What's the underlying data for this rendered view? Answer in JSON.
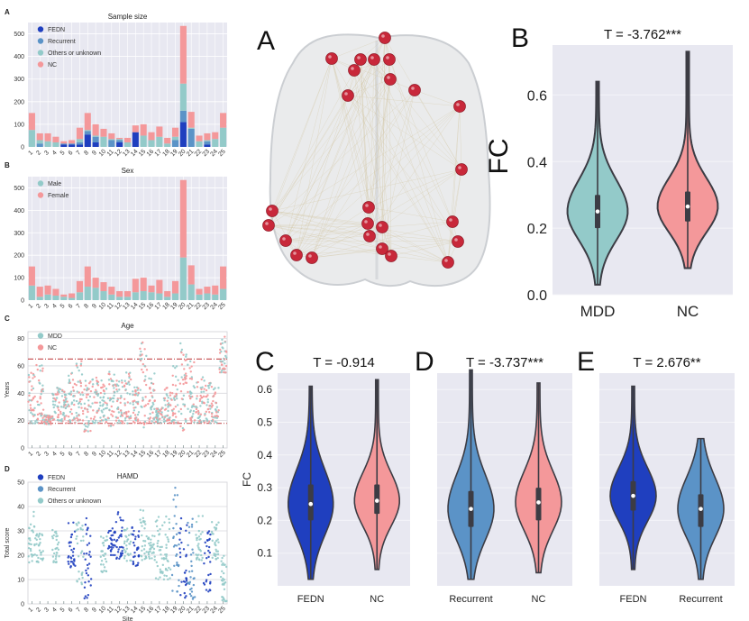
{
  "figure": {
    "left_panels": {
      "A": "A",
      "B": "B",
      "C": "C",
      "D": "D"
    },
    "right_panels": {
      "A": "A",
      "B": "B",
      "C": "C",
      "D": "D",
      "E": "E"
    }
  },
  "colors": {
    "FEDN": "#1f3fbf",
    "Recurrent": "#5b93c7",
    "Others": "#93cac9",
    "NC": "#f4989a",
    "Male": "#93cac9",
    "Female": "#f4989a",
    "plot_bg": "#e8e8f1",
    "node": "#c8283a"
  },
  "chart_data": [
    {
      "id": "sample_size",
      "type": "bar",
      "stacked": true,
      "title": "Sample size",
      "xlabel": "",
      "ylabel": "",
      "ylim": [
        0,
        550
      ],
      "yticks": [
        0,
        100,
        200,
        300,
        400,
        500
      ],
      "categories": [
        "1",
        "2",
        "3",
        "4",
        "5",
        "6",
        "7",
        "8",
        "9",
        "10",
        "11",
        "12",
        "13",
        "14",
        "15",
        "16",
        "17",
        "18",
        "19",
        "20",
        "21",
        "22",
        "23",
        "24",
        "25"
      ],
      "legend": [
        "FEDN",
        "Recurrent",
        "Others or unknown",
        "NC"
      ],
      "legend_position": "top-left",
      "series": [
        {
          "name": "FEDN",
          "values": [
            0,
            0,
            0,
            0,
            10,
            10,
            10,
            55,
            20,
            0,
            0,
            20,
            0,
            65,
            0,
            0,
            0,
            0,
            0,
            110,
            0,
            0,
            10,
            0,
            0
          ]
        },
        {
          "name": "Recurrent",
          "values": [
            0,
            15,
            0,
            0,
            5,
            5,
            10,
            15,
            25,
            0,
            30,
            10,
            0,
            0,
            0,
            0,
            0,
            0,
            30,
            50,
            80,
            0,
            15,
            0,
            0
          ]
        },
        {
          "name": "Others or unknown",
          "values": [
            75,
            15,
            25,
            20,
            0,
            0,
            15,
            5,
            5,
            45,
            5,
            5,
            20,
            0,
            50,
            30,
            45,
            15,
            15,
            120,
            5,
            25,
            5,
            35,
            85
          ]
        },
        {
          "name": "NC",
          "values": [
            75,
            30,
            35,
            25,
            10,
            15,
            50,
            75,
            50,
            35,
            25,
            5,
            20,
            30,
            50,
            35,
            45,
            25,
            40,
            255,
            70,
            25,
            30,
            30,
            65
          ]
        }
      ]
    },
    {
      "id": "sex",
      "type": "bar",
      "stacked": true,
      "title": "Sex",
      "ylim": [
        0,
        550
      ],
      "yticks": [
        0,
        100,
        200,
        300,
        400,
        500
      ],
      "categories": [
        "1",
        "2",
        "3",
        "4",
        "5",
        "6",
        "7",
        "8",
        "9",
        "10",
        "11",
        "12",
        "13",
        "14",
        "15",
        "16",
        "17",
        "18",
        "19",
        "20",
        "21",
        "22",
        "23",
        "24",
        "25"
      ],
      "legend": [
        "Male",
        "Female"
      ],
      "legend_position": "top-left",
      "series": [
        {
          "name": "Male",
          "values": [
            65,
            15,
            25,
            20,
            15,
            10,
            35,
            60,
            55,
            40,
            25,
            15,
            15,
            35,
            40,
            35,
            30,
            15,
            30,
            190,
            70,
            25,
            30,
            25,
            50
          ]
        },
        {
          "name": "Female",
          "values": [
            85,
            45,
            40,
            30,
            10,
            20,
            50,
            90,
            45,
            40,
            35,
            25,
            25,
            60,
            60,
            30,
            60,
            25,
            55,
            345,
            85,
            25,
            30,
            40,
            100
          ]
        }
      ]
    },
    {
      "id": "age",
      "type": "scatter",
      "title": "Age",
      "ylabel": "Years",
      "ylim": [
        0,
        85
      ],
      "yticks": [
        0,
        20,
        40,
        60,
        80
      ],
      "categories": [
        "1",
        "2",
        "3",
        "4",
        "5",
        "6",
        "7",
        "8",
        "9",
        "10",
        "11",
        "12",
        "13",
        "14",
        "15",
        "16",
        "17",
        "18",
        "19",
        "20",
        "21",
        "22",
        "23",
        "24",
        "25"
      ],
      "legend": [
        "MDD",
        "NC"
      ],
      "legend_position": "top-left",
      "reference_lines": [
        18,
        65
      ],
      "site_ranges": [
        [
          18,
          58
        ],
        [
          18,
          63
        ],
        [
          17,
          24
        ],
        [
          20,
          45
        ],
        [
          18,
          43
        ],
        [
          18,
          55
        ],
        [
          20,
          65
        ],
        [
          12,
          50
        ],
        [
          18,
          52
        ],
        [
          18,
          50
        ],
        [
          16,
          56
        ],
        [
          18,
          50
        ],
        [
          18,
          56
        ],
        [
          18,
          45
        ],
        [
          15,
          80
        ],
        [
          18,
          55
        ],
        [
          18,
          30
        ],
        [
          18,
          45
        ],
        [
          18,
          60
        ],
        [
          12,
          77
        ],
        [
          18,
          65
        ],
        [
          18,
          55
        ],
        [
          18,
          50
        ],
        [
          18,
          45
        ],
        [
          55,
          82
        ]
      ]
    },
    {
      "id": "hamd",
      "type": "scatter",
      "title": "HAMD",
      "xlabel": "Site",
      "ylabel": "Total score",
      "ylim": [
        0,
        50
      ],
      "yticks": [
        0,
        10,
        20,
        30,
        40,
        50
      ],
      "categories": [
        "1",
        "2",
        "3",
        "4",
        "5",
        "6",
        "7",
        "8",
        "9",
        "10",
        "11",
        "12",
        "13",
        "14",
        "15",
        "16",
        "17",
        "18",
        "19",
        "20",
        "21",
        "22",
        "23",
        "24",
        "25"
      ],
      "legend": [
        "FEDN",
        "Recurrent",
        "Others or unknown"
      ],
      "legend_position": "top-left",
      "site_groups": [
        "Others",
        "Others",
        "",
        "Others",
        "",
        "FEDN",
        "Others",
        "FEDN",
        "",
        "Others",
        "FEDN",
        "FEDN",
        "Others",
        "FEDN",
        "Others",
        "Others",
        "Others",
        "Others",
        "Recurrent",
        "FEDN",
        "Recurrent",
        "Others",
        "FEDN",
        "Others",
        "Others"
      ],
      "site_ranges": [
        [
          16,
          38
        ],
        [
          17,
          30
        ],
        null,
        [
          17,
          31
        ],
        null,
        [
          15,
          35
        ],
        [
          8,
          34
        ],
        [
          2,
          38
        ],
        null,
        [
          13,
          28
        ],
        [
          20,
          31
        ],
        [
          18,
          38
        ],
        [
          17,
          32
        ],
        [
          15,
          32
        ],
        [
          18,
          46
        ],
        [
          18,
          28
        ],
        [
          10,
          36
        ],
        [
          10,
          37
        ],
        [
          5,
          48
        ],
        [
          2,
          40
        ],
        [
          2,
          35
        ],
        [
          18,
          40
        ],
        [
          5,
          33
        ],
        [
          18,
          34
        ],
        [
          1,
          20
        ]
      ]
    },
    {
      "id": "violin_B",
      "type": "violin",
      "panel": "B",
      "title": "T = -3.762***",
      "ylabel": "FC",
      "ylim": [
        0.0,
        0.75
      ],
      "yticks": [
        0.0,
        0.2,
        0.4,
        0.6
      ],
      "categories": [
        "MDD",
        "NC"
      ],
      "series": [
        {
          "name": "MDD",
          "min": 0.03,
          "q1": 0.2,
          "median": 0.25,
          "q3": 0.3,
          "max": 0.64,
          "color_key": "Others"
        },
        {
          "name": "NC",
          "min": 0.08,
          "q1": 0.22,
          "median": 0.265,
          "q3": 0.31,
          "max": 0.73,
          "color_key": "NC"
        }
      ]
    },
    {
      "id": "violin_C",
      "type": "violin",
      "panel": "C",
      "title": "T = -0.914",
      "ylabel": "FC",
      "ylim": [
        0.0,
        0.65
      ],
      "yticks": [
        0.1,
        0.2,
        0.3,
        0.4,
        0.5,
        0.6
      ],
      "categories": [
        "FEDN",
        "NC"
      ],
      "series": [
        {
          "name": "FEDN",
          "min": 0.02,
          "q1": 0.2,
          "median": 0.25,
          "q3": 0.31,
          "max": 0.61,
          "color_key": "FEDN"
        },
        {
          "name": "NC",
          "min": 0.05,
          "q1": 0.22,
          "median": 0.26,
          "q3": 0.31,
          "max": 0.63,
          "color_key": "NC"
        }
      ]
    },
    {
      "id": "violin_D",
      "type": "violin",
      "panel": "D",
      "title": "T = -3.737***",
      "ylim": [
        0.0,
        0.65
      ],
      "yticks": [
        0.1,
        0.2,
        0.3,
        0.4,
        0.5,
        0.6
      ],
      "categories": [
        "Recurrent",
        "NC"
      ],
      "series": [
        {
          "name": "Recurrent",
          "min": 0.02,
          "q1": 0.18,
          "median": 0.235,
          "q3": 0.29,
          "max": 0.66,
          "color_key": "Recurrent"
        },
        {
          "name": "NC",
          "min": 0.04,
          "q1": 0.2,
          "median": 0.255,
          "q3": 0.3,
          "max": 0.62,
          "color_key": "NC"
        }
      ]
    },
    {
      "id": "violin_E",
      "type": "violin",
      "panel": "E",
      "title": "T = 2.676**",
      "ylim": [
        0.0,
        0.65
      ],
      "yticks": [
        0.1,
        0.2,
        0.3,
        0.4,
        0.5,
        0.6
      ],
      "categories": [
        "FEDN",
        "Recurrent"
      ],
      "series": [
        {
          "name": "FEDN",
          "min": 0.05,
          "q1": 0.23,
          "median": 0.275,
          "q3": 0.32,
          "max": 0.61,
          "color_key": "FEDN"
        },
        {
          "name": "Recurrent",
          "min": 0.02,
          "q1": 0.18,
          "median": 0.235,
          "q3": 0.28,
          "max": 0.45,
          "color_key": "Recurrent"
        }
      ]
    }
  ]
}
